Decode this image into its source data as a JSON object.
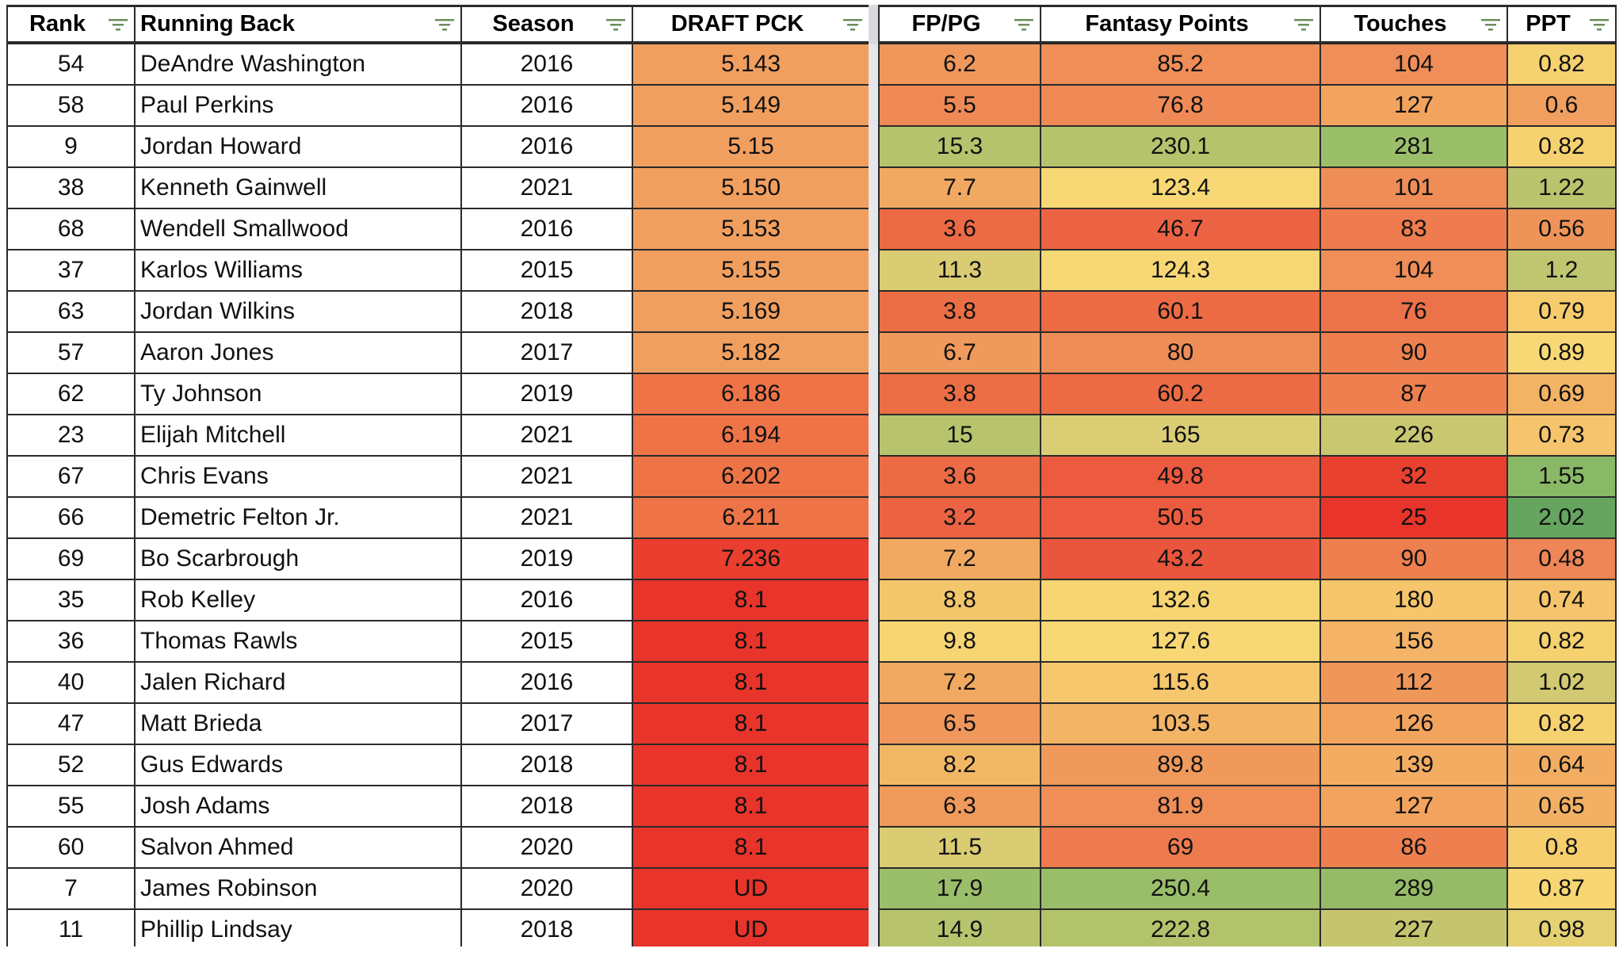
{
  "columns": [
    {
      "key": "rank",
      "label": "Rank",
      "align": "center",
      "width": 163
    },
    {
      "key": "player",
      "label": "Running Back",
      "align": "left",
      "width": 412
    },
    {
      "key": "season",
      "label": "Season",
      "align": "center",
      "width": 216
    },
    {
      "key": "draft_pick",
      "label": "DRAFT PCK",
      "align": "center",
      "width": 297
    },
    {
      "key": "fppg",
      "label": "FP/PG",
      "align": "center",
      "width": 206
    },
    {
      "key": "fantasy_points",
      "label": "Fantasy Points",
      "align": "center",
      "width": 353
    },
    {
      "key": "touches",
      "label": "Touches",
      "align": "center",
      "width": 236
    },
    {
      "key": "ppt",
      "label": "PPT",
      "align": "center",
      "width": 137
    }
  ],
  "rows": [
    {
      "rank": "54",
      "player": "DeAndre Washington",
      "season": "2016",
      "draft_pick": "5.143",
      "fppg": "6.2",
      "fantasy_points": "85.2",
      "touches": "104",
      "ppt": "0.82"
    },
    {
      "rank": "58",
      "player": "Paul Perkins",
      "season": "2016",
      "draft_pick": "5.149",
      "fppg": "5.5",
      "fantasy_points": "76.8",
      "touches": "127",
      "ppt": "0.6"
    },
    {
      "rank": "9",
      "player": "Jordan Howard",
      "season": "2016",
      "draft_pick": "5.15",
      "fppg": "15.3",
      "fantasy_points": "230.1",
      "touches": "281",
      "ppt": "0.82"
    },
    {
      "rank": "38",
      "player": "Kenneth Gainwell",
      "season": "2021",
      "draft_pick": "5.150",
      "fppg": "7.7",
      "fantasy_points": "123.4",
      "touches": "101",
      "ppt": "1.22"
    },
    {
      "rank": "68",
      "player": "Wendell Smallwood",
      "season": "2016",
      "draft_pick": "5.153",
      "fppg": "3.6",
      "fantasy_points": "46.7",
      "touches": "83",
      "ppt": "0.56"
    },
    {
      "rank": "37",
      "player": "Karlos Williams",
      "season": "2015",
      "draft_pick": "5.155",
      "fppg": "11.3",
      "fantasy_points": "124.3",
      "touches": "104",
      "ppt": "1.2"
    },
    {
      "rank": "63",
      "player": "Jordan Wilkins",
      "season": "2018",
      "draft_pick": "5.169",
      "fppg": "3.8",
      "fantasy_points": "60.1",
      "touches": "76",
      "ppt": "0.79"
    },
    {
      "rank": "57",
      "player": "Aaron Jones",
      "season": "2017",
      "draft_pick": "5.182",
      "fppg": "6.7",
      "fantasy_points": "80",
      "touches": "90",
      "ppt": "0.89"
    },
    {
      "rank": "62",
      "player": "Ty Johnson",
      "season": "2019",
      "draft_pick": "6.186",
      "fppg": "3.8",
      "fantasy_points": "60.2",
      "touches": "87",
      "ppt": "0.69"
    },
    {
      "rank": "23",
      "player": "Elijah Mitchell",
      "season": "2021",
      "draft_pick": "6.194",
      "fppg": "15",
      "fantasy_points": "165",
      "touches": "226",
      "ppt": "0.73"
    },
    {
      "rank": "67",
      "player": "Chris Evans",
      "season": "2021",
      "draft_pick": "6.202",
      "fppg": "3.6",
      "fantasy_points": "49.8",
      "touches": "32",
      "ppt": "1.55"
    },
    {
      "rank": "66",
      "player": "Demetric Felton Jr.",
      "season": "2021",
      "draft_pick": "6.211",
      "fppg": "3.2",
      "fantasy_points": "50.5",
      "touches": "25",
      "ppt": "2.02"
    },
    {
      "rank": "69",
      "player": "Bo Scarbrough",
      "season": "2019",
      "draft_pick": "7.236",
      "fppg": "7.2",
      "fantasy_points": "43.2",
      "touches": "90",
      "ppt": "0.48"
    },
    {
      "rank": "35",
      "player": "Rob Kelley",
      "season": "2016",
      "draft_pick": "8.1",
      "fppg": "8.8",
      "fantasy_points": "132.6",
      "touches": "180",
      "ppt": "0.74"
    },
    {
      "rank": "36",
      "player": "Thomas Rawls",
      "season": "2015",
      "draft_pick": "8.1",
      "fppg": "9.8",
      "fantasy_points": "127.6",
      "touches": "156",
      "ppt": "0.82"
    },
    {
      "rank": "40",
      "player": "Jalen Richard",
      "season": "2016",
      "draft_pick": "8.1",
      "fppg": "7.2",
      "fantasy_points": "115.6",
      "touches": "112",
      "ppt": "1.02"
    },
    {
      "rank": "47",
      "player": "Matt Brieda",
      "season": "2017",
      "draft_pick": "8.1",
      "fppg": "6.5",
      "fantasy_points": "103.5",
      "touches": "126",
      "ppt": "0.82"
    },
    {
      "rank": "52",
      "player": "Gus Edwards",
      "season": "2018",
      "draft_pick": "8.1",
      "fppg": "8.2",
      "fantasy_points": "89.8",
      "touches": "139",
      "ppt": "0.64"
    },
    {
      "rank": "55",
      "player": "Josh Adams",
      "season": "2018",
      "draft_pick": "8.1",
      "fppg": "6.3",
      "fantasy_points": "81.9",
      "touches": "127",
      "ppt": "0.65"
    },
    {
      "rank": "60",
      "player": "Salvon Ahmed",
      "season": "2020",
      "draft_pick": "8.1",
      "fppg": "11.5",
      "fantasy_points": "69",
      "touches": "86",
      "ppt": "0.8"
    },
    {
      "rank": "7",
      "player": "James Robinson",
      "season": "2020",
      "draft_pick": "UD",
      "fppg": "17.9",
      "fantasy_points": "250.4",
      "touches": "289",
      "ppt": "0.87"
    },
    {
      "rank": "11",
      "player": "Phillip Lindsay",
      "season": "2018",
      "draft_pick": "UD",
      "fppg": "14.9",
      "fantasy_points": "222.8",
      "touches": "227",
      "ppt": "0.98"
    }
  ],
  "colors": {
    "draft_pick": [
      "#f19f5f",
      "#f19f5f",
      "#f19f5f",
      "#f19f5f",
      "#f19f5f",
      "#f19f5f",
      "#f19f5f",
      "#f19f5f",
      "#ee7447",
      "#ee7447",
      "#ee7447",
      "#ee7447",
      "#ea3e2e",
      "#e8342a",
      "#e8342a",
      "#e8342a",
      "#e8342a",
      "#e8342a",
      "#e8342a",
      "#e8342a",
      "#e8342a",
      "#e8342a"
    ],
    "fppg": [
      "#f0975c",
      "#ef8a56",
      "#b5c46c",
      "#f1a961",
      "#ec6a44",
      "#d9cc73",
      "#ec6e45",
      "#f0995c",
      "#ec6e45",
      "#b8c46d",
      "#ec6a44",
      "#eb6342",
      "#f1a961",
      "#f4c66b",
      "#f7d572",
      "#f1a961",
      "#f0975c",
      "#f2b765",
      "#f09a5c",
      "#d9cc73",
      "#9bbe6a",
      "#b7c46d"
    ],
    "fantasy_points": [
      "#ef8e57",
      "#ef8a56",
      "#b5c46c",
      "#f7d874",
      "#ec6344",
      "#f7d874",
      "#ec6a44",
      "#ef8d57",
      "#ec6a44",
      "#dbcd74",
      "#ec5a3f",
      "#ec5b3f",
      "#ea553d",
      "#f7d572",
      "#f7d874",
      "#f6c76d",
      "#f3b565",
      "#ef995b",
      "#ef8e57",
      "#ee7b4d",
      "#99bd69",
      "#b3c36c"
    ],
    "touches": [
      "#ef8e58",
      "#f2a45f",
      "#9bbe69",
      "#ef8d57",
      "#ee7c4e",
      "#ef8e58",
      "#ec724a",
      "#ee804f",
      "#ee804f",
      "#cac771",
      "#e8412f",
      "#e8342a",
      "#ee804f",
      "#f6c56c",
      "#f4b366",
      "#ef9759",
      "#f2a45f",
      "#f3ad63",
      "#f2a45f",
      "#ee804f",
      "#96bb68",
      "#c5c56f"
    ],
    "ppt": [
      "#f6d16f",
      "#f19f5f",
      "#f6d16f",
      "#b9c46d",
      "#ef9459",
      "#bfc66f",
      "#f6cc6d",
      "#f7d874",
      "#f3b365",
      "#f6c46c",
      "#89b967",
      "#65a55f",
      "#ef8657",
      "#f6c46c",
      "#f6d16f",
      "#d3c972",
      "#f6d16f",
      "#f2ad62",
      "#f2b064",
      "#f6ce6e",
      "#f7d673",
      "#e5d073"
    ]
  },
  "icons": {
    "filter": "filter-lines-icon"
  }
}
